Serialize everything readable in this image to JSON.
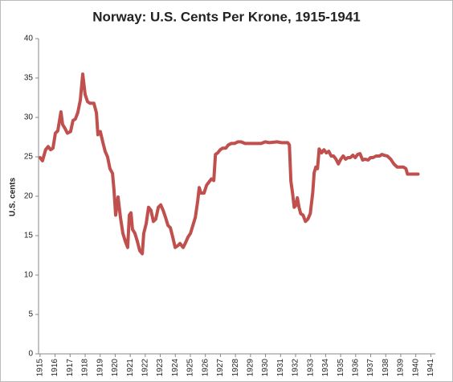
{
  "chart_data": {
    "type": "line",
    "title": "Norway: U.S. Cents Per Krone, 1915-1941",
    "y_label": "U.S. cents",
    "x": [
      1915.0,
      1915.16,
      1915.37,
      1915.54,
      1915.7,
      1915.86,
      1916.02,
      1916.18,
      1916.39,
      1916.5,
      1916.66,
      1916.82,
      1917.03,
      1917.19,
      1917.35,
      1917.51,
      1917.68,
      1917.84,
      1918.0,
      1918.16,
      1918.32,
      1918.58,
      1918.75,
      1918.85,
      1919.01,
      1919.17,
      1919.33,
      1919.49,
      1919.65,
      1919.82,
      1919.92,
      1920.03,
      1920.19,
      1920.35,
      1920.51,
      1920.67,
      1920.83,
      1920.94,
      1921.05,
      1921.15,
      1921.31,
      1921.47,
      1921.63,
      1921.8,
      1921.9,
      1922.06,
      1922.22,
      1922.38,
      1922.54,
      1922.7,
      1922.87,
      1923.03,
      1923.19,
      1923.35,
      1923.51,
      1923.67,
      1923.83,
      1923.99,
      1924.15,
      1924.31,
      1924.52,
      1924.68,
      1924.84,
      1925.01,
      1925.17,
      1925.33,
      1925.49,
      1925.59,
      1925.7,
      1925.91,
      1926.08,
      1926.24,
      1926.4,
      1926.56,
      1926.67,
      1926.82,
      1926.99,
      1927.15,
      1927.36,
      1927.52,
      1927.73,
      1927.95,
      1928.16,
      1928.38,
      1928.64,
      1929.45,
      1929.71,
      1929.98,
      1930.25,
      1930.78,
      1931.05,
      1931.48,
      1931.59,
      1931.69,
      1931.8,
      1931.91,
      1932.01,
      1932.12,
      1932.23,
      1932.34,
      1932.5,
      1932.66,
      1932.82,
      1932.98,
      1933.14,
      1933.24,
      1933.35,
      1933.46,
      1933.57,
      1933.73,
      1933.89,
      1934.05,
      1934.21,
      1934.37,
      1934.53,
      1934.69,
      1934.85,
      1935.01,
      1935.17,
      1935.33,
      1935.49,
      1935.65,
      1935.81,
      1935.97,
      1936.13,
      1936.29,
      1936.46,
      1936.62,
      1936.83,
      1936.99,
      1937.15,
      1937.36,
      1937.58,
      1937.74,
      1937.9,
      1938.11,
      1938.33,
      1938.54,
      1938.76,
      1938.97,
      1939.18,
      1939.34,
      1939.45,
      1939.72,
      1940.15
    ],
    "series": [
      {
        "name": "U.S. cents per krone",
        "color": "#c0504d",
        "values": [
          24.9,
          24.5,
          25.9,
          26.3,
          25.9,
          26.1,
          28.0,
          28.3,
          30.7,
          29.1,
          28.6,
          28.0,
          28.2,
          29.6,
          29.8,
          30.6,
          32.2,
          35.5,
          32.9,
          32.0,
          31.8,
          31.8,
          30.6,
          27.8,
          28.2,
          26.9,
          25.7,
          25.0,
          23.5,
          22.9,
          20.8,
          17.6,
          19.9,
          17.3,
          15.3,
          14.3,
          13.5,
          17.6,
          17.9,
          15.8,
          15.3,
          14.3,
          13.1,
          12.7,
          15.3,
          16.5,
          18.6,
          18.2,
          16.8,
          17.1,
          18.6,
          18.9,
          18.2,
          17.3,
          16.3,
          16.0,
          14.8,
          13.5,
          13.7,
          14.0,
          13.5,
          14.1,
          14.8,
          15.3,
          16.3,
          17.3,
          19.4,
          21.1,
          20.4,
          20.4,
          21.4,
          21.8,
          22.2,
          22.0,
          25.3,
          25.5,
          25.9,
          26.1,
          26.1,
          26.5,
          26.7,
          26.7,
          26.9,
          26.9,
          26.7,
          26.7,
          26.7,
          26.9,
          26.8,
          26.9,
          26.8,
          26.8,
          26.5,
          21.9,
          20.4,
          18.6,
          18.8,
          19.8,
          18.6,
          17.8,
          17.6,
          16.8,
          17.1,
          17.8,
          20.4,
          23.0,
          23.7,
          23.5,
          26.0,
          25.5,
          25.9,
          25.5,
          25.7,
          25.1,
          25.1,
          24.7,
          24.1,
          24.7,
          25.1,
          24.7,
          24.9,
          24.9,
          25.2,
          24.9,
          25.3,
          25.4,
          24.6,
          24.7,
          24.6,
          24.9,
          24.9,
          25.1,
          25.1,
          25.3,
          25.2,
          25.1,
          24.7,
          24.1,
          23.7,
          23.7,
          23.7,
          23.5,
          22.8,
          22.8,
          22.8
        ]
      }
    ],
    "xlim": [
      1914.9,
      1941.3
    ],
    "xticks": [
      1915,
      1916,
      1917,
      1918,
      1919,
      1920,
      1921,
      1922,
      1923,
      1924,
      1925,
      1926,
      1927,
      1928,
      1929,
      1930,
      1931,
      1932,
      1933,
      1934,
      1935,
      1936,
      1937,
      1938,
      1939,
      1940,
      1941
    ],
    "ylim": [
      0,
      40
    ],
    "yticks": [
      0,
      5,
      10,
      15,
      20,
      25,
      30,
      35,
      40
    ],
    "grid": false
  }
}
